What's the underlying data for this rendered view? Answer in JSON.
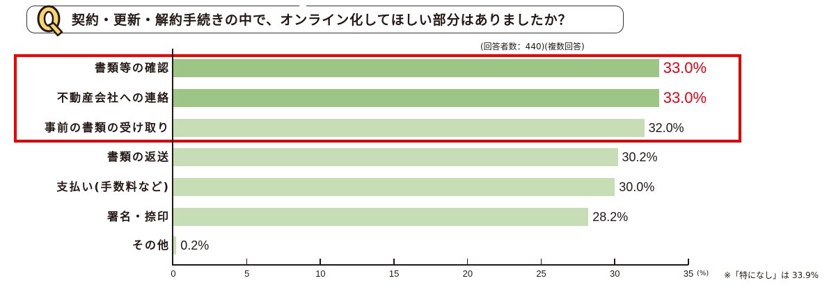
{
  "question": {
    "icon_letter": "Q",
    "title": "契約・更新・解約手続きの中で、オンライン化してほしい部分はありましたか？",
    "respondents_note": "(回答者数：440)(複数回答)"
  },
  "colors": {
    "bar_dark": "#9dc585",
    "bar_light": "#c6ddb5",
    "highlight_border": "#ee0000",
    "highlight_value": "#e60012",
    "q_icon_fill": "#f8d66e"
  },
  "chart_data": {
    "type": "bar",
    "orientation": "horizontal",
    "title": "契約・更新・解約手続きの中で、オンライン化してほしい部分はありましたか？",
    "subtitle": "(回答者数：440)(複数回答)",
    "categories": [
      "書類等の確認",
      "不動産会社への連絡",
      "事前の書類の受け取り",
      "書類の返送",
      "支払い(手数料など)",
      "署名・捺印",
      "その他"
    ],
    "values": [
      33.0,
      33.0,
      32.0,
      30.2,
      30.0,
      28.2,
      0.2
    ],
    "value_labels": [
      "33.0%",
      "33.0%",
      "32.0%",
      "30.2%",
      "30.0%",
      "28.2%",
      "0.2%"
    ],
    "highlighted": [
      true,
      true,
      false,
      false,
      false,
      false,
      false
    ],
    "boxed_categories": [
      "書類等の確認",
      "不動産会社への連絡",
      "事前の書類の受け取り"
    ],
    "xlabel": "(%)",
    "ylabel": "",
    "xlim": [
      0,
      35
    ],
    "xticks": [
      "0",
      "5",
      "10",
      "15",
      "20",
      "25",
      "30",
      "35"
    ],
    "grid": false,
    "legend": null,
    "annotation": "※「特になし」は 33.9%"
  },
  "axis": {
    "unit": "(%)",
    "ticks": [
      "0",
      "5",
      "10",
      "15",
      "20",
      "25",
      "30",
      "35"
    ]
  },
  "footnote": "※「特になし」は 33.9%"
}
